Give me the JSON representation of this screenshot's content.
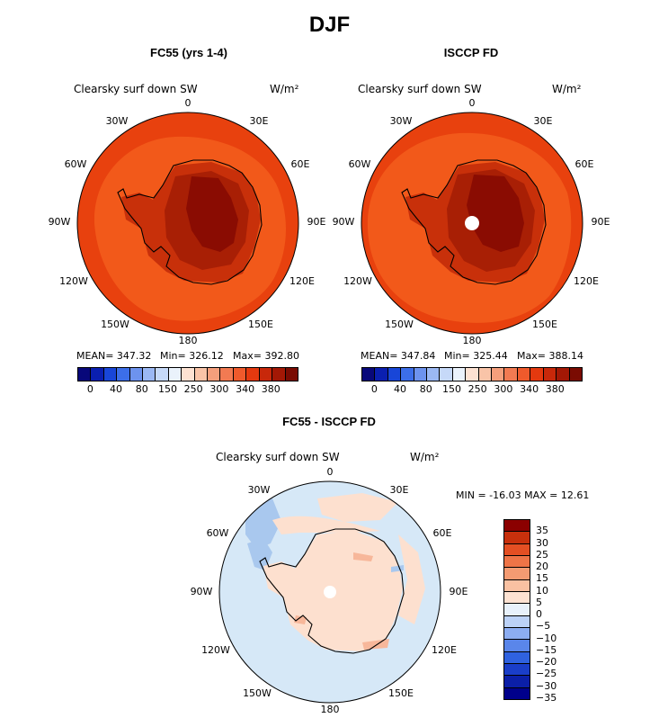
{
  "figure": {
    "title": "DJF"
  },
  "panels": [
    {
      "title": "FC55 (yrs 1-4)",
      "variable": "Clearsky surf down SW",
      "units": "W/m²",
      "stats": {
        "mean": "MEAN= 347.32",
        "min": "Min= 326.12",
        "max": "Max= 392.80"
      },
      "colors": {
        "outer": "#e8410e",
        "ring": "#f2591a",
        "coast_band": "#c8300a",
        "interior": "#a81f05",
        "plateau": "#8a0c02"
      }
    },
    {
      "title": "ISCCP FD",
      "variable": "Clearsky surf down SW",
      "units": "W/m²",
      "stats": {
        "mean": "MEAN= 347.84",
        "min": "Min= 325.44",
        "max": "Max= 388.14"
      },
      "colors": {
        "outer": "#e8410e",
        "ring": "#f2591a",
        "coast_band": "#c8300a",
        "interior": "#a81f05",
        "plateau": "#8a0c02"
      }
    },
    {
      "title": "FC55 - ISCCP FD",
      "variable": "Clearsky surf down SW",
      "units": "W/m²",
      "stats": {
        "minmax": "MIN = -16.03 MAX =  12.61"
      },
      "colors": {
        "ocean": "#d6e8f7",
        "land": "#fde0cf",
        "neg_patch": "#a9c8ee",
        "pos_patch": "#f7b79a"
      }
    }
  ],
  "lon_labels": {
    "n0": "0",
    "e30": "30E",
    "e60": "60E",
    "e90": "90E",
    "e120": "120E",
    "e150": "150E",
    "n180": "180",
    "w150": "150W",
    "w120": "120W",
    "w90": "90W",
    "w60": "60W",
    "w30": "30W"
  },
  "colorbar_abs": {
    "colors": [
      "#08087a",
      "#0a1fb0",
      "#1846d8",
      "#3c6ee8",
      "#6d93ee",
      "#9bb8f3",
      "#c6d9f8",
      "#eaf2fb",
      "#fde2d2",
      "#f9c4a8",
      "#f59f7c",
      "#f27a52",
      "#ef5a2c",
      "#e4390f",
      "#c8280a",
      "#a31805",
      "#7a0b02"
    ],
    "tick_labels": [
      "0",
      "40",
      "80",
      "150",
      "250",
      "300",
      "340",
      "380"
    ]
  },
  "colorbar_diff": {
    "colors": [
      "#00008b",
      "#0b1fa8",
      "#1a3ec9",
      "#2f62e0",
      "#5a86ea",
      "#8cadf2",
      "#bcd2f7",
      "#e8f1fb",
      "#fde2d2",
      "#f9c1a2",
      "#f49b72",
      "#ee7447",
      "#e44f23",
      "#c8300c",
      "#8b0000"
    ],
    "tick_labels": [
      "35",
      "30",
      "25",
      "20",
      "15",
      "10",
      "5",
      "0",
      "−5",
      "−10",
      "−15",
      "−20",
      "−25",
      "−30",
      "−35"
    ]
  }
}
